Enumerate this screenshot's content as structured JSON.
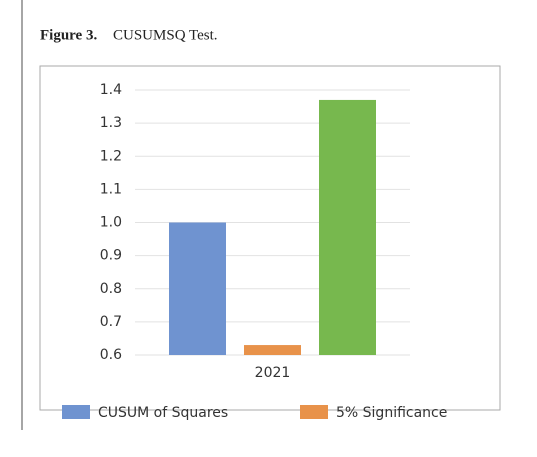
{
  "chart_data": {
    "type": "bar",
    "figure_label": "Figure 3.",
    "title": "CUSUMSQ Test.",
    "categories": [
      "2021"
    ],
    "series": [
      {
        "name": "CUSUM of Squares",
        "color": "#6f93d0",
        "values": [
          1.0
        ]
      },
      {
        "name": "5% Significance",
        "color": "#e8924a",
        "values": [
          0.63
        ]
      },
      {
        "color": "#77b84e",
        "values": [
          1.37
        ]
      }
    ],
    "ylim": [
      0.6,
      1.4
    ],
    "yticks": [
      0.6,
      0.7,
      0.8,
      0.9,
      {
        "value": 1,
        "label": "1.0"
      },
      1.1,
      1.2,
      1.3,
      1.4
    ],
    "grid": true
  }
}
